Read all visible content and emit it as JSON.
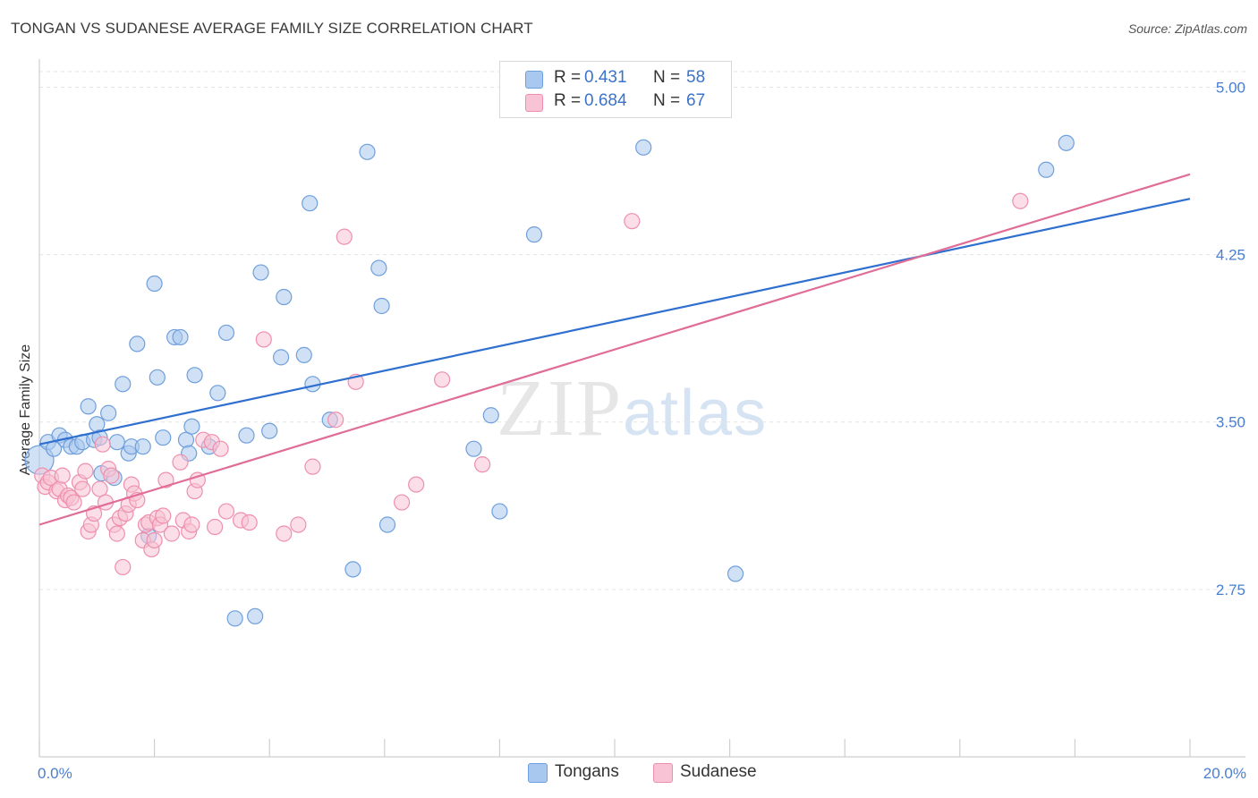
{
  "header": {
    "title": "TONGAN VS SUDANESE AVERAGE FAMILY SIZE CORRELATION CHART",
    "source": "Source: ZipAtlas.com"
  },
  "watermark": {
    "zip": "ZIP",
    "atlas": "atlas"
  },
  "legend": {
    "rows": [
      {
        "r_label": "R =",
        "r_value": "0.431",
        "n_label": "N =",
        "n_value": "58",
        "color": "#a9c8ef"
      },
      {
        "r_label": "R =",
        "r_value": "0.684",
        "n_label": "N =",
        "n_value": "67",
        "color": "#f6b8cc"
      }
    ]
  },
  "bottom_legend": {
    "items": [
      {
        "label": "Tongans",
        "color": "#a9c8ef"
      },
      {
        "label": "Sudanese",
        "color": "#f6b8cc"
      }
    ]
  },
  "colors": {
    "tongans_fill": "#a9c8ef",
    "tongans_stroke": "#6f9fdc",
    "tongans_line": "#2e6fcf",
    "sudanese_fill": "#f8c3d4",
    "sudanese_stroke": "#ee8fae",
    "sudanese_line": "#e06d98",
    "tick_text": "#4a7fd0"
  },
  "chart_data": {
    "type": "scatter",
    "title": "TONGAN VS SUDANESE AVERAGE FAMILY SIZE CORRELATION CHART",
    "xlabel": "",
    "ylabel": "Average Family Size",
    "xlim": [
      0,
      20
    ],
    "ylim": [
      2.0,
      5.07
    ],
    "x_tick_labels": [
      "0.0%",
      "20.0%"
    ],
    "x_ticks": [
      0,
      20
    ],
    "y_ticks": [
      2.75,
      3.5,
      4.25,
      5.0
    ],
    "y_tick_labels": [
      "2.75",
      "3.50",
      "4.25",
      "5.00"
    ],
    "grid": true,
    "series": [
      {
        "name": "Tongans",
        "trend": {
          "x0": 0,
          "y0": 3.4,
          "x1": 20,
          "y1": 4.5
        },
        "points": [
          [
            0.0,
            3.33
          ],
          [
            0.15,
            3.41
          ],
          [
            0.25,
            3.38
          ],
          [
            0.35,
            3.44
          ],
          [
            0.45,
            3.42
          ],
          [
            0.55,
            3.39
          ],
          [
            0.65,
            3.39
          ],
          [
            0.75,
            3.41
          ],
          [
            0.85,
            3.57
          ],
          [
            0.95,
            3.42
          ],
          [
            1.0,
            3.49
          ],
          [
            1.05,
            3.43
          ],
          [
            1.08,
            3.27
          ],
          [
            1.2,
            3.54
          ],
          [
            1.3,
            3.25
          ],
          [
            1.35,
            3.41
          ],
          [
            1.45,
            3.67
          ],
          [
            1.55,
            3.36
          ],
          [
            1.6,
            3.39
          ],
          [
            1.7,
            3.85
          ],
          [
            1.8,
            3.39
          ],
          [
            1.9,
            2.99
          ],
          [
            2.0,
            4.12
          ],
          [
            2.05,
            3.7
          ],
          [
            2.15,
            3.43
          ],
          [
            2.35,
            3.88
          ],
          [
            2.45,
            3.88
          ],
          [
            2.55,
            3.42
          ],
          [
            2.6,
            3.36
          ],
          [
            2.65,
            3.48
          ],
          [
            2.7,
            3.71
          ],
          [
            2.95,
            3.39
          ],
          [
            3.1,
            3.63
          ],
          [
            3.25,
            3.9
          ],
          [
            3.4,
            2.62
          ],
          [
            3.6,
            3.44
          ],
          [
            3.75,
            2.63
          ],
          [
            3.85,
            4.17
          ],
          [
            4.0,
            3.46
          ],
          [
            4.2,
            3.79
          ],
          [
            4.25,
            4.06
          ],
          [
            4.6,
            3.8
          ],
          [
            4.7,
            4.48
          ],
          [
            4.75,
            3.67
          ],
          [
            5.05,
            3.51
          ],
          [
            5.45,
            2.84
          ],
          [
            5.7,
            4.71
          ],
          [
            5.9,
            4.19
          ],
          [
            5.95,
            4.02
          ],
          [
            6.05,
            3.04
          ],
          [
            7.55,
            3.38
          ],
          [
            7.85,
            3.53
          ],
          [
            8.0,
            3.1
          ],
          [
            8.6,
            4.34
          ],
          [
            10.5,
            4.73
          ],
          [
            12.1,
            2.82
          ],
          [
            17.5,
            4.63
          ],
          [
            17.85,
            4.75
          ]
        ]
      },
      {
        "name": "Sudanese",
        "trend": {
          "x0": 0,
          "y0": 3.04,
          "x1": 20,
          "y1": 4.61
        },
        "points": [
          [
            0.05,
            3.26
          ],
          [
            0.1,
            3.21
          ],
          [
            0.15,
            3.23
          ],
          [
            0.2,
            3.25
          ],
          [
            0.3,
            3.19
          ],
          [
            0.35,
            3.2
          ],
          [
            0.4,
            3.26
          ],
          [
            0.45,
            3.15
          ],
          [
            0.5,
            3.17
          ],
          [
            0.55,
            3.16
          ],
          [
            0.6,
            3.14
          ],
          [
            0.7,
            3.23
          ],
          [
            0.75,
            3.2
          ],
          [
            0.8,
            3.28
          ],
          [
            0.85,
            3.01
          ],
          [
            0.9,
            3.04
          ],
          [
            0.95,
            3.09
          ],
          [
            1.05,
            3.2
          ],
          [
            1.1,
            3.4
          ],
          [
            1.15,
            3.14
          ],
          [
            1.2,
            3.29
          ],
          [
            1.25,
            3.26
          ],
          [
            1.3,
            3.04
          ],
          [
            1.35,
            3.0
          ],
          [
            1.4,
            3.07
          ],
          [
            1.45,
            2.85
          ],
          [
            1.5,
            3.09
          ],
          [
            1.55,
            3.13
          ],
          [
            1.6,
            3.22
          ],
          [
            1.65,
            3.18
          ],
          [
            1.7,
            3.15
          ],
          [
            1.8,
            2.97
          ],
          [
            1.85,
            3.04
          ],
          [
            1.9,
            3.05
          ],
          [
            1.95,
            2.93
          ],
          [
            2.0,
            2.97
          ],
          [
            2.05,
            3.07
          ],
          [
            2.1,
            3.04
          ],
          [
            2.15,
            3.08
          ],
          [
            2.2,
            3.24
          ],
          [
            2.3,
            3.0
          ],
          [
            2.45,
            3.32
          ],
          [
            2.5,
            3.06
          ],
          [
            2.6,
            3.01
          ],
          [
            2.65,
            3.04
          ],
          [
            2.7,
            3.19
          ],
          [
            2.75,
            3.24
          ],
          [
            2.85,
            3.42
          ],
          [
            3.0,
            3.41
          ],
          [
            3.05,
            3.03
          ],
          [
            3.15,
            3.38
          ],
          [
            3.25,
            3.1
          ],
          [
            3.5,
            3.06
          ],
          [
            3.65,
            3.05
          ],
          [
            3.9,
            3.87
          ],
          [
            4.25,
            3.0
          ],
          [
            4.5,
            3.04
          ],
          [
            4.75,
            3.3
          ],
          [
            5.15,
            3.51
          ],
          [
            5.3,
            4.33
          ],
          [
            5.5,
            3.68
          ],
          [
            6.3,
            3.14
          ],
          [
            6.55,
            3.22
          ],
          [
            7.0,
            3.69
          ],
          [
            7.7,
            3.31
          ],
          [
            10.3,
            4.4
          ],
          [
            17.05,
            4.49
          ]
        ]
      }
    ]
  }
}
